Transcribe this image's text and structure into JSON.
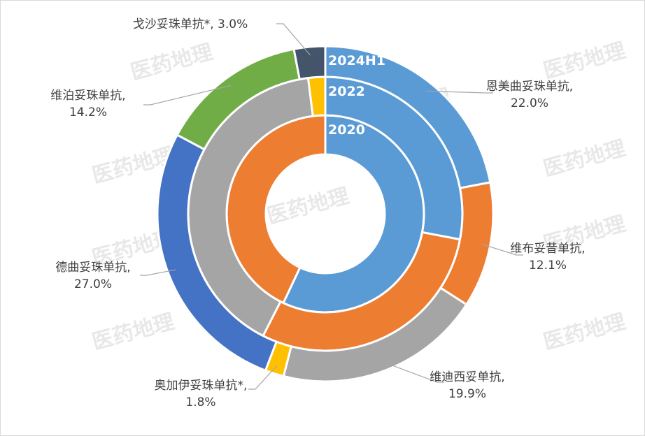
{
  "watermark": "医药地理",
  "chart_data": {
    "type": "donut",
    "colors": {
      "恩美曲妥珠单抗": "#5b9bd5",
      "维布妥昔单抗": "#ed7d31",
      "维迪西妥单抗": "#a5a5a5",
      "奥加伊妥珠单抗*": "#ffc000",
      "德曲妥珠单抗": "#4472c4",
      "维泊妥珠单抗": "#70ad47",
      "戈沙妥珠单抗*": "#44546a"
    },
    "rings": [
      {
        "name": "2020",
        "segments": [
          {
            "label": "恩美曲妥珠单抗",
            "value": 57
          },
          {
            "label": "维布妥昔单抗",
            "value": 43
          }
        ]
      },
      {
        "name": "2022",
        "segments": [
          {
            "label": "恩美曲妥珠单抗",
            "value": 28
          },
          {
            "label": "维布妥昔单抗",
            "value": 29.5
          },
          {
            "label": "维迪西妥单抗",
            "value": 40.5
          },
          {
            "label": "奥加伊妥珠单抗*",
            "value": 2
          }
        ]
      },
      {
        "name": "2024H1",
        "segments": [
          {
            "label": "恩美曲妥珠单抗",
            "value": 22.0
          },
          {
            "label": "维布妥昔单抗",
            "value": 12.1
          },
          {
            "label": "维迪西妥单抗",
            "value": 19.9
          },
          {
            "label": "奥加伊妥珠单抗*",
            "value": 1.8
          },
          {
            "label": "德曲妥珠单抗",
            "value": 27.0
          },
          {
            "label": "维泊妥珠单抗",
            "value": 14.2
          },
          {
            "label": "戈沙妥珠单抗*",
            "value": 3.0
          }
        ]
      }
    ],
    "outer_labels": [
      {
        "name": "恩美曲妥珠单抗,",
        "pct": "22.0%"
      },
      {
        "name": "维布妥昔单抗,",
        "pct": "12.1%"
      },
      {
        "name": "维迪西妥单抗,",
        "pct": "19.9%"
      },
      {
        "name": "奥加伊妥珠单抗*,",
        "pct": "1.8%"
      },
      {
        "name": "德曲妥珠单抗,",
        "pct": "27.0%"
      },
      {
        "name": "维泊妥珠单抗,",
        "pct": "14.2%"
      },
      {
        "name": "戈沙妥珠单抗*, 3.0%",
        "pct": ""
      }
    ]
  }
}
